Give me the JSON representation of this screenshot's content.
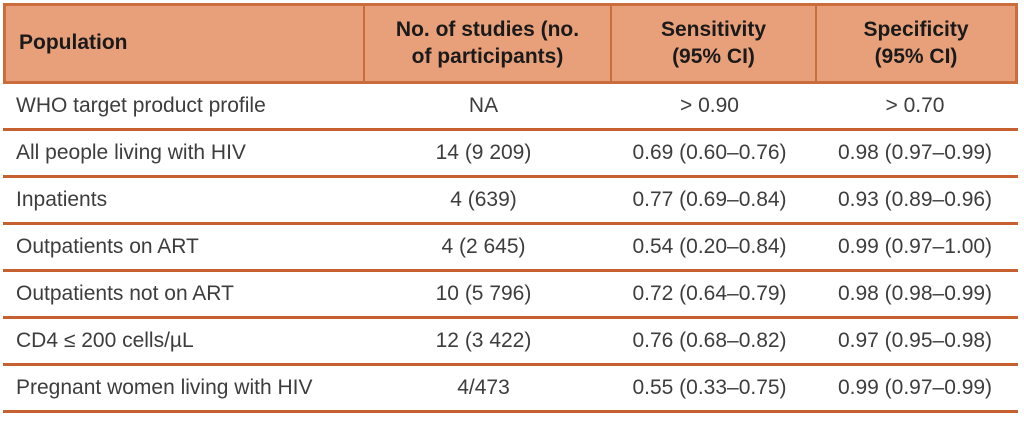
{
  "colors": {
    "header_fill": "#E8A07A",
    "header_border": "#CA6C3B",
    "row_line": "#C66030",
    "header_text": "#1A1A1A",
    "body_text": "#3D3D3D"
  },
  "table": {
    "columns": [
      {
        "label": "Population"
      },
      {
        "label": "No. of studies (no. of participants)"
      },
      {
        "label": "Sensitivity (95% CI)"
      },
      {
        "label": "Specificity (95% CI)"
      }
    ],
    "rows": [
      {
        "population": "WHO target product profile",
        "studies": "NA",
        "sensitivity": "> 0.90",
        "specificity": "> 0.70"
      },
      {
        "population": "All people living with HIV",
        "studies": "14 (9 209)",
        "sensitivity": "0.69 (0.60–0.76)",
        "specificity": "0.98 (0.97–0.99)"
      },
      {
        "population": "Inpatients",
        "studies": "4 (639)",
        "sensitivity": "0.77 (0.69–0.84)",
        "specificity": "0.93 (0.89–0.96)"
      },
      {
        "population": "Outpatients on ART",
        "studies": "4 (2 645)",
        "sensitivity": "0.54 (0.20–0.84)",
        "specificity": "0.99 (0.97–1.00)"
      },
      {
        "population": "Outpatients not on ART",
        "studies": "10 (5 796)",
        "sensitivity": "0.72 (0.64–0.79)",
        "specificity": "0.98 (0.98–0.99)"
      },
      {
        "population": "CD4 ≤ 200 cells/µL",
        "studies": "12 (3 422)",
        "sensitivity": "0.76 (0.68–0.82)",
        "specificity": "0.97 (0.95–0.98)"
      },
      {
        "population": "Pregnant women living with HIV",
        "studies": "4/473",
        "sensitivity": "0.55 (0.33–0.75)",
        "specificity": "0.99 (0.97–0.99)"
      }
    ]
  }
}
